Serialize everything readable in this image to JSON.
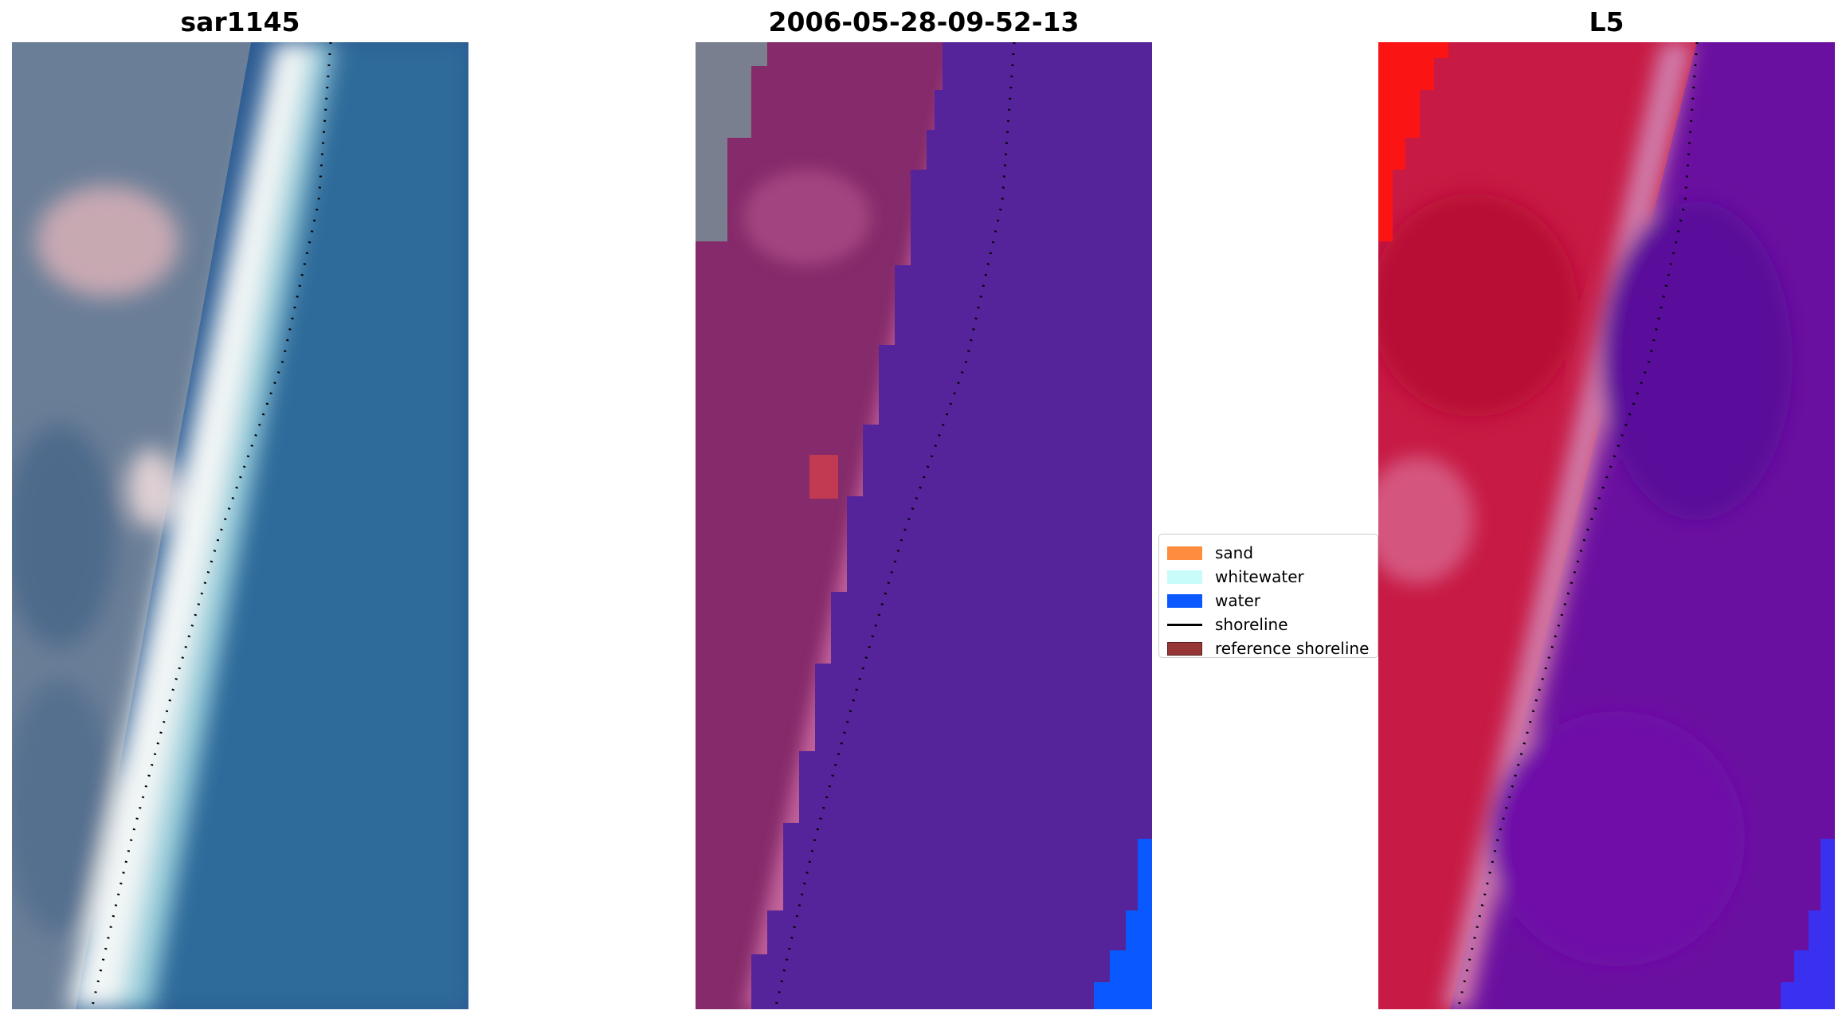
{
  "panels": [
    {
      "title": "sar1145"
    },
    {
      "title": "2006-05-28-09-52-13"
    },
    {
      "title": "L5"
    }
  ],
  "legend": {
    "items": [
      {
        "label": "sand",
        "color": "#ff8c3f",
        "kind": "patch"
      },
      {
        "label": "whitewater",
        "color": "#c7fcfa",
        "kind": "patch"
      },
      {
        "label": "water",
        "color": "#0a58ff",
        "kind": "patch"
      },
      {
        "label": "shoreline",
        "color": "#000000",
        "kind": "line"
      },
      {
        "label": "reference shoreline",
        "color": "#963636",
        "kind": "patch"
      }
    ]
  }
}
